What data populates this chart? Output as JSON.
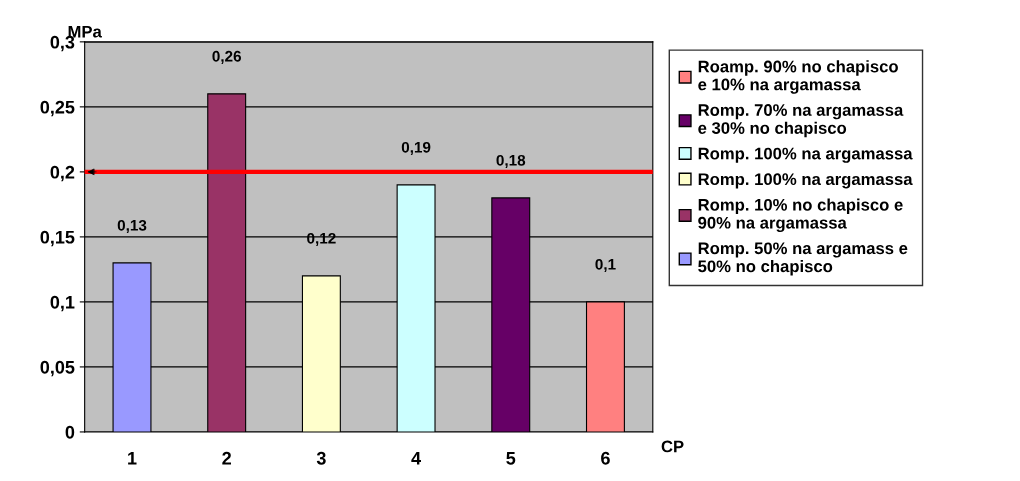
{
  "chart_data": {
    "type": "bar",
    "categories": [
      "1",
      "2",
      "3",
      "4",
      "5",
      "6"
    ],
    "series": [
      {
        "name": "Romp. 50% na argamass e 50% no chapisco",
        "color": "#9999ff",
        "values": [
          0.13,
          null,
          null,
          null,
          null,
          null
        ]
      },
      {
        "name": "Romp. 10% no chapisco e 90% na argamassa",
        "color": "#993366",
        "values": [
          null,
          0.26,
          null,
          null,
          null,
          null
        ]
      },
      {
        "name": "Romp. 100% na argamassa",
        "color": "#ffffcc",
        "values": [
          null,
          null,
          0.12,
          null,
          null,
          null
        ]
      },
      {
        "name": "Romp. 100% na argamassa",
        "color": "#ccffff",
        "values": [
          null,
          null,
          null,
          0.19,
          null,
          null
        ]
      },
      {
        "name": "Romp. 70% na argamassa e 30% no chapisco",
        "color": "#660066",
        "values": [
          null,
          null,
          null,
          null,
          0.18,
          null
        ]
      },
      {
        "name": "Roamp. 90% no chapisco e 10% na argamassa",
        "color": "#ff8080",
        "values": [
          null,
          null,
          null,
          null,
          null,
          0.1
        ]
      }
    ],
    "ylabel": "MPa",
    "xlabel": "CP",
    "ylim": [
      0,
      0.3
    ],
    "yticks": [
      {
        "value": 0,
        "label": "0"
      },
      {
        "value": 0.05,
        "label": "0,05"
      },
      {
        "value": 0.1,
        "label": "0,1"
      },
      {
        "value": 0.15,
        "label": "0,15"
      },
      {
        "value": 0.2,
        "label": "0,2"
      },
      {
        "value": 0.25,
        "label": "0,25"
      },
      {
        "value": 0.3,
        "label": "0,3"
      }
    ],
    "value_labels": [
      "0,13",
      "0,26",
      "0,12",
      "0,19",
      "0,18",
      "0,1"
    ],
    "ref_lines": [
      {
        "axis": "y",
        "value": 0.2,
        "color": "#ff0000"
      }
    ],
    "grid": "y",
    "legend": "right"
  }
}
